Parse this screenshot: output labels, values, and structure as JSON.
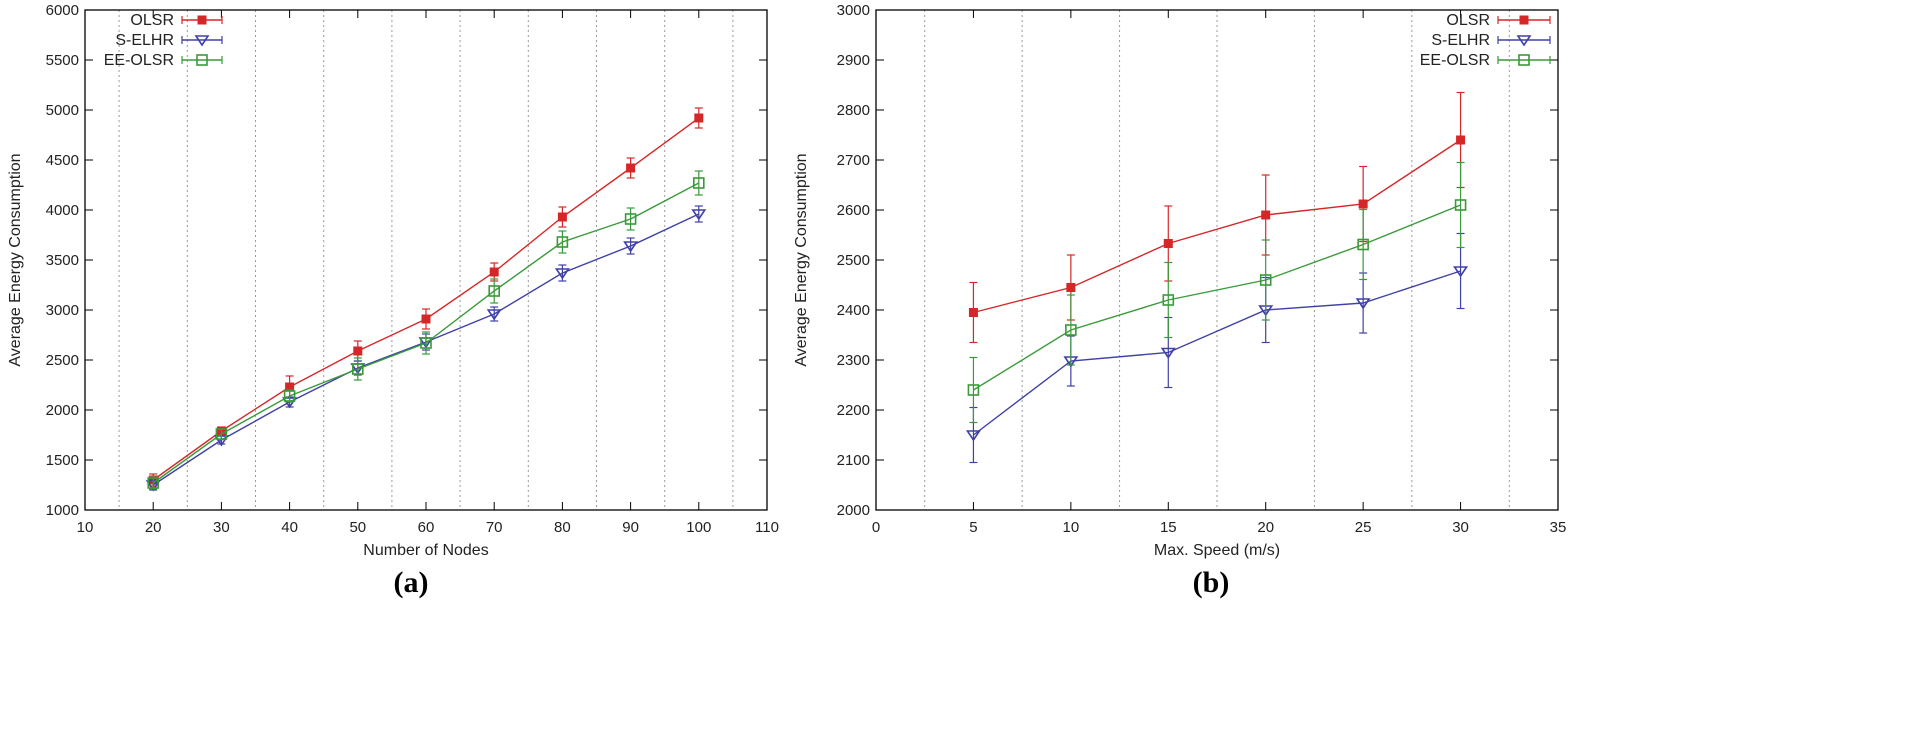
{
  "chart_data": [
    {
      "type": "line",
      "caption": "(a)",
      "xlabel": "Number of Nodes",
      "ylabel": "Average Energy Consumption",
      "xlim": [
        10,
        110
      ],
      "ylim": [
        1000,
        6000
      ],
      "xticks": [
        10,
        20,
        30,
        40,
        50,
        60,
        70,
        80,
        90,
        100,
        110
      ],
      "yticks": [
        1000,
        1500,
        2000,
        2500,
        3000,
        3500,
        4000,
        4500,
        5000,
        5500,
        6000
      ],
      "gridlines_x": [
        15,
        25,
        35,
        45,
        55,
        65,
        75,
        85,
        95,
        105
      ],
      "legend_position": "top-left",
      "x": [
        20,
        30,
        40,
        50,
        60,
        70,
        80,
        90,
        100
      ],
      "series": [
        {
          "name": "OLSR",
          "color": "#d62728",
          "marker": "filled-square",
          "values": [
            1300,
            1790,
            2230,
            2590,
            2910,
            3380,
            3930,
            4420,
            4920
          ],
          "errors": [
            60,
            40,
            110,
            100,
            100,
            90,
            100,
            100,
            100
          ]
        },
        {
          "name": "S-ELHR",
          "color": "#4040a8",
          "marker": "down-triangle",
          "values": [
            1250,
            1700,
            2080,
            2420,
            2680,
            2960,
            3370,
            3640,
            3960
          ],
          "errors": [
            50,
            40,
            50,
            70,
            80,
            70,
            80,
            80,
            80
          ]
        },
        {
          "name": "EE-OLSR",
          "color": "#3a9a3a",
          "marker": "open-square",
          "values": [
            1270,
            1760,
            2140,
            2410,
            2670,
            3190,
            3680,
            3910,
            4270
          ],
          "errors": [
            60,
            50,
            60,
            110,
            110,
            120,
            110,
            110,
            120
          ]
        }
      ]
    },
    {
      "type": "line",
      "caption": "(b)",
      "xlabel": "Max. Speed (m/s)",
      "ylabel": "Average Energy Consumption",
      "xlim": [
        0,
        35
      ],
      "ylim": [
        2000,
        3000
      ],
      "xticks": [
        0,
        5,
        10,
        15,
        20,
        25,
        30,
        35
      ],
      "yticks": [
        2000,
        2100,
        2200,
        2300,
        2400,
        2500,
        2600,
        2700,
        2800,
        2900,
        3000
      ],
      "gridlines_x": [
        2.5,
        7.5,
        12.5,
        17.5,
        22.5,
        27.5,
        32.5
      ],
      "legend_position": "top-right",
      "x": [
        5,
        10,
        15,
        20,
        25,
        30
      ],
      "series": [
        {
          "name": "OLSR",
          "color": "#d62728",
          "marker": "filled-square",
          "values": [
            2395,
            2445,
            2533,
            2590,
            2612,
            2740
          ],
          "errors": [
            60,
            65,
            75,
            80,
            75,
            95
          ]
        },
        {
          "name": "S-ELHR",
          "color": "#4040a8",
          "marker": "down-triangle",
          "values": [
            2150,
            2298,
            2315,
            2400,
            2414,
            2478
          ],
          "errors": [
            55,
            50,
            70,
            65,
            60,
            75
          ]
        },
        {
          "name": "EE-OLSR",
          "color": "#3a9a3a",
          "marker": "open-square",
          "values": [
            2240,
            2360,
            2420,
            2460,
            2531,
            2610
          ],
          "errors": [
            65,
            70,
            75,
            80,
            70,
            85
          ]
        }
      ]
    }
  ]
}
